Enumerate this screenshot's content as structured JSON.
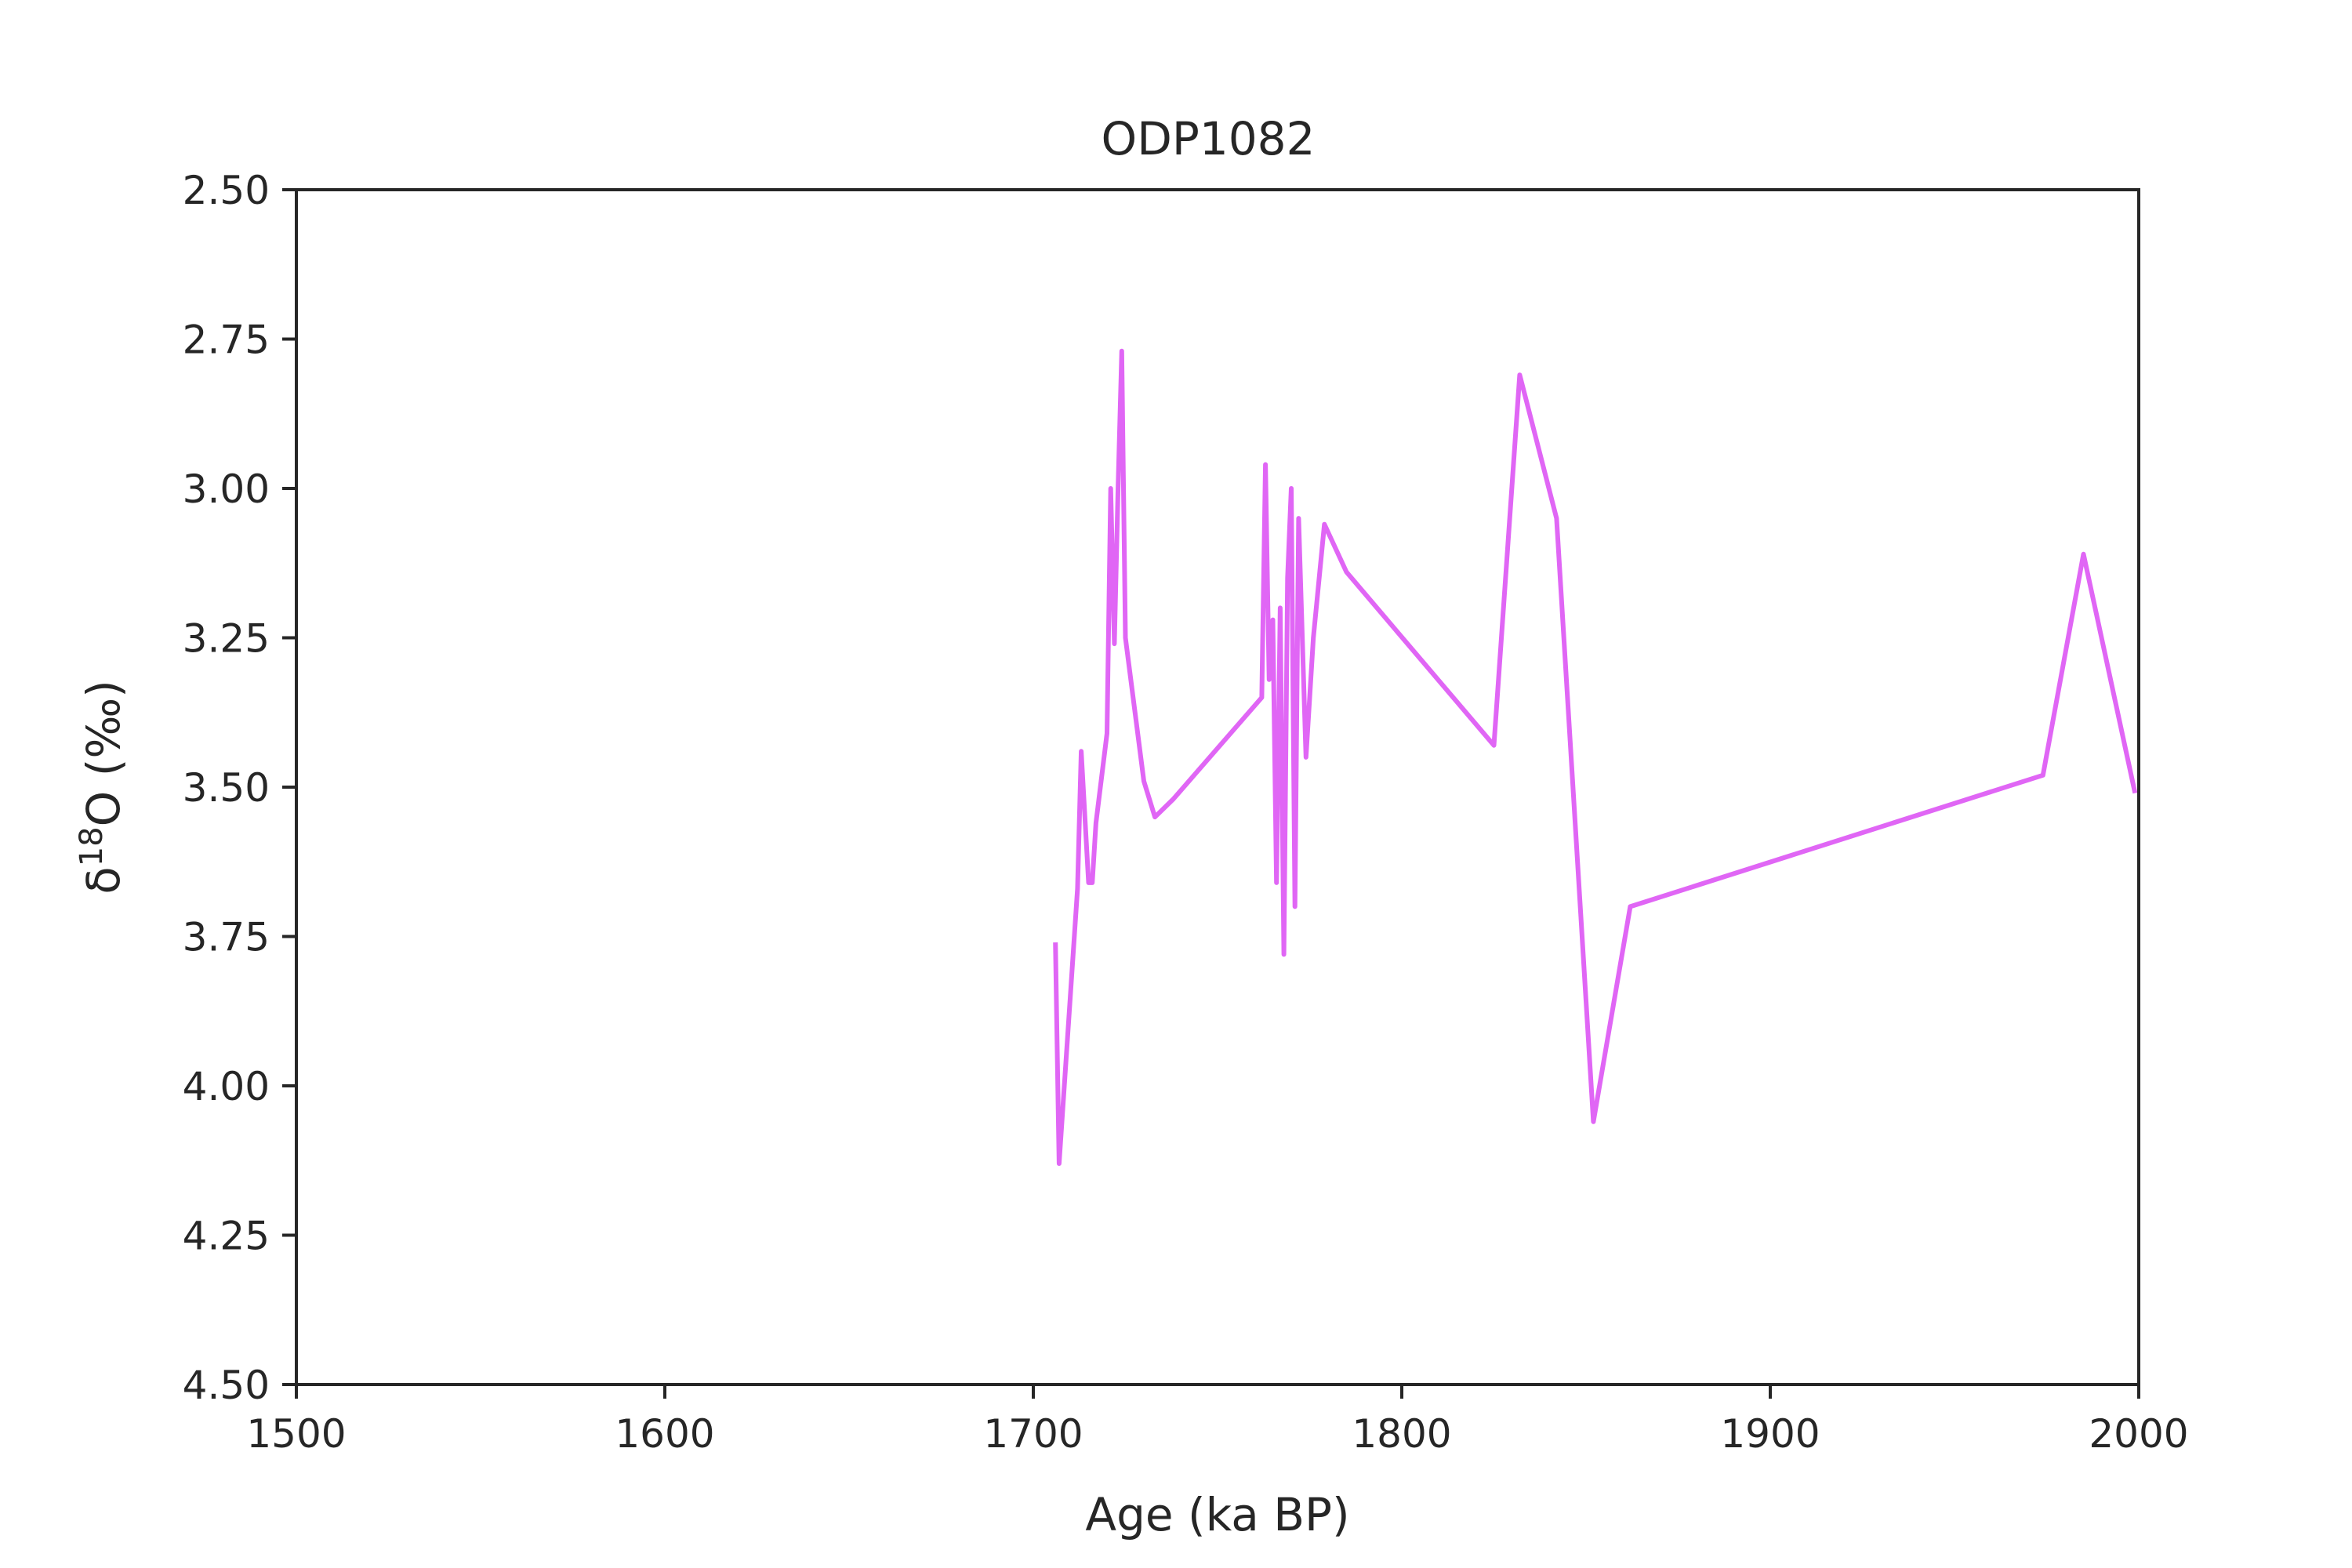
{
  "chart_data": {
    "type": "line",
    "title": "ODP1082",
    "xlabel": "Age (ka BP)",
    "ylabel_base": "δ",
    "ylabel_sup": "18",
    "ylabel_rest": "O (‰)",
    "xlim": [
      1500,
      2000
    ],
    "ylim": [
      2.5,
      4.5
    ],
    "y_inverted": true,
    "grid": false,
    "x_ticks": [
      1500,
      1600,
      1700,
      1800,
      1900,
      2000
    ],
    "x_tick_labels": [
      "1500",
      "1600",
      "1700",
      "1800",
      "1900",
      "2000"
    ],
    "y_ticks": [
      2.5,
      2.75,
      3.0,
      3.25,
      3.5,
      3.75,
      4.0,
      4.25,
      4.5
    ],
    "y_tick_labels": [
      "2.50",
      "2.75",
      "3.00",
      "3.25",
      "3.50",
      "3.75",
      "4.00",
      "4.25",
      "4.50"
    ],
    "line_color": "#e066f5",
    "series": [
      {
        "x": [
          1706,
          1707,
          1712,
          1713,
          1715,
          1716,
          1717,
          1720,
          1721,
          1722,
          1723,
          1724,
          1725,
          1730,
          1733,
          1738,
          1762,
          1763,
          1764,
          1765,
          1766,
          1767,
          1768,
          1769,
          1770,
          1771,
          1772,
          1774,
          1776,
          1779,
          1785,
          1825,
          1832,
          1842,
          1852,
          1862,
          1974,
          1985,
          1999
        ],
        "y": [
          3.76,
          4.13,
          3.67,
          3.44,
          3.66,
          3.66,
          3.56,
          3.41,
          3.0,
          3.26,
          3.0,
          2.77,
          3.25,
          3.49,
          3.55,
          3.52,
          3.35,
          2.96,
          3.32,
          3.22,
          3.66,
          3.2,
          3.78,
          3.15,
          3.0,
          3.7,
          3.05,
          3.45,
          3.25,
          3.06,
          3.14,
          3.43,
          2.81,
          3.05,
          4.06,
          3.7,
          3.48,
          3.11,
          3.51
        ]
      }
    ]
  }
}
